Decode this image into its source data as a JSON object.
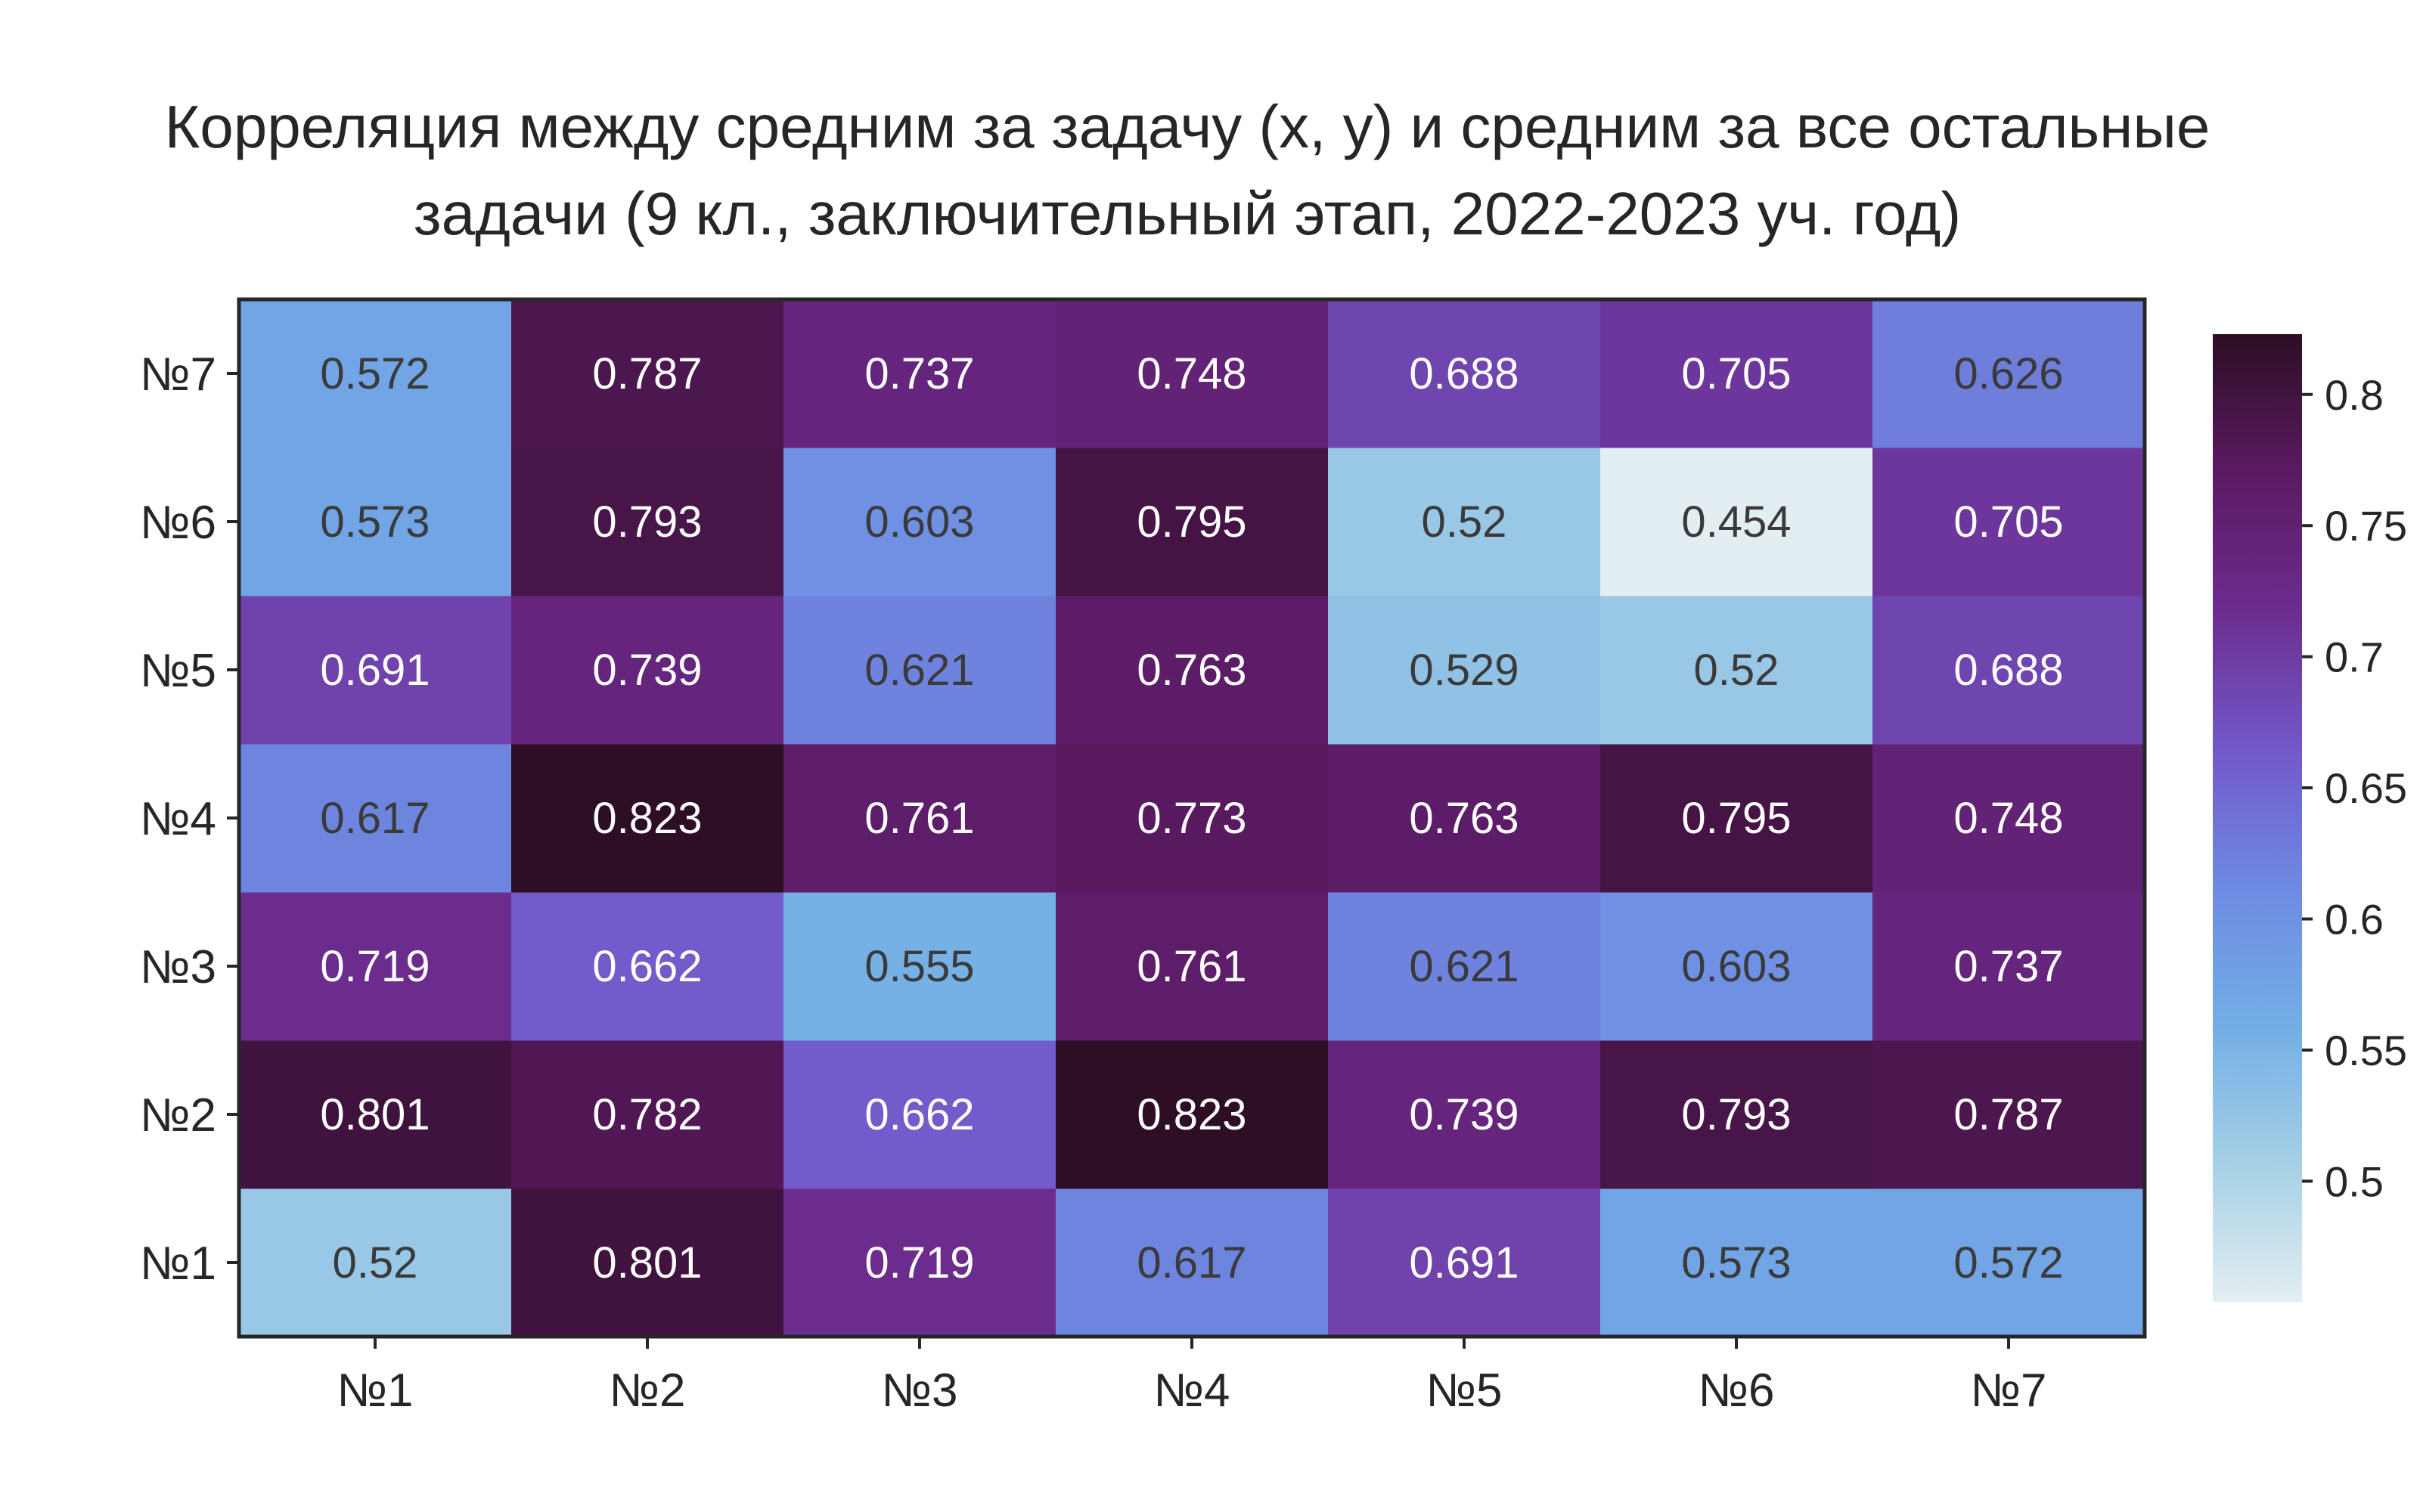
{
  "chart_data": {
    "type": "heatmap",
    "title": "Корреляция между средним за задачу (x, y) и средним за все остальные задачи (9 кл., заключительный этап, 2022-2023 уч. год)",
    "title_lines": [
      "Корреляция между средним за задачу (x, y) и средним за все остальные",
      "задачи (9 кл., заключительный этап, 2022-2023 уч. год)"
    ],
    "x_categories": [
      "№1",
      "№2",
      "№3",
      "№4",
      "№5",
      "№6",
      "№7"
    ],
    "y_categories": [
      "№1",
      "№2",
      "№3",
      "№4",
      "№5",
      "№6",
      "№7"
    ],
    "values": [
      [
        0.52,
        0.801,
        0.719,
        0.617,
        0.691,
        0.573,
        0.572
      ],
      [
        0.801,
        0.782,
        0.662,
        0.823,
        0.739,
        0.793,
        0.787
      ],
      [
        0.719,
        0.662,
        0.555,
        0.761,
        0.621,
        0.603,
        0.737
      ],
      [
        0.617,
        0.823,
        0.761,
        0.773,
        0.763,
        0.795,
        0.748
      ],
      [
        0.691,
        0.739,
        0.621,
        0.763,
        0.529,
        0.52,
        0.688
      ],
      [
        0.573,
        0.793,
        0.603,
        0.795,
        0.52,
        0.454,
        0.705
      ],
      [
        0.572,
        0.787,
        0.737,
        0.748,
        0.688,
        0.705,
        0.626
      ]
    ],
    "value_labels": [
      [
        "0.52",
        "0.801",
        "0.719",
        "0.617",
        "0.691",
        "0.573",
        "0.572"
      ],
      [
        "0.801",
        "0.782",
        "0.662",
        "0.823",
        "0.739",
        "0.793",
        "0.787"
      ],
      [
        "0.719",
        "0.662",
        "0.555",
        "0.761",
        "0.621",
        "0.603",
        "0.737"
      ],
      [
        "0.617",
        "0.823",
        "0.761",
        "0.773",
        "0.763",
        "0.795",
        "0.748"
      ],
      [
        "0.691",
        "0.739",
        "0.621",
        "0.763",
        "0.529",
        "0.52",
        "0.688"
      ],
      [
        "0.573",
        "0.793",
        "0.603",
        "0.795",
        "0.52",
        "0.454",
        "0.705"
      ],
      [
        "0.572",
        "0.787",
        "0.737",
        "0.748",
        "0.688",
        "0.705",
        "0.626"
      ]
    ],
    "y_order": "bottom-to-top",
    "colorbar": {
      "range": [
        0.454,
        0.823
      ],
      "ticks": [
        0.5,
        0.55,
        0.6,
        0.65,
        0.7,
        0.75,
        0.8
      ],
      "tick_labels": [
        "0.5",
        "0.55",
        "0.6",
        "0.65",
        "0.7",
        "0.75",
        "0.8"
      ],
      "placement": "right"
    },
    "colormap": [
      "#e3eef2",
      "#a6d0e6",
      "#72aee6",
      "#6e8ae2",
      "#7258c9",
      "#6c2c8e",
      "#5a1a62",
      "#2d0e24"
    ],
    "text_color_light": "#ffffff",
    "text_color_dark": "#3a3a3a",
    "grid": false,
    "xlabel": "",
    "ylabel": ""
  }
}
